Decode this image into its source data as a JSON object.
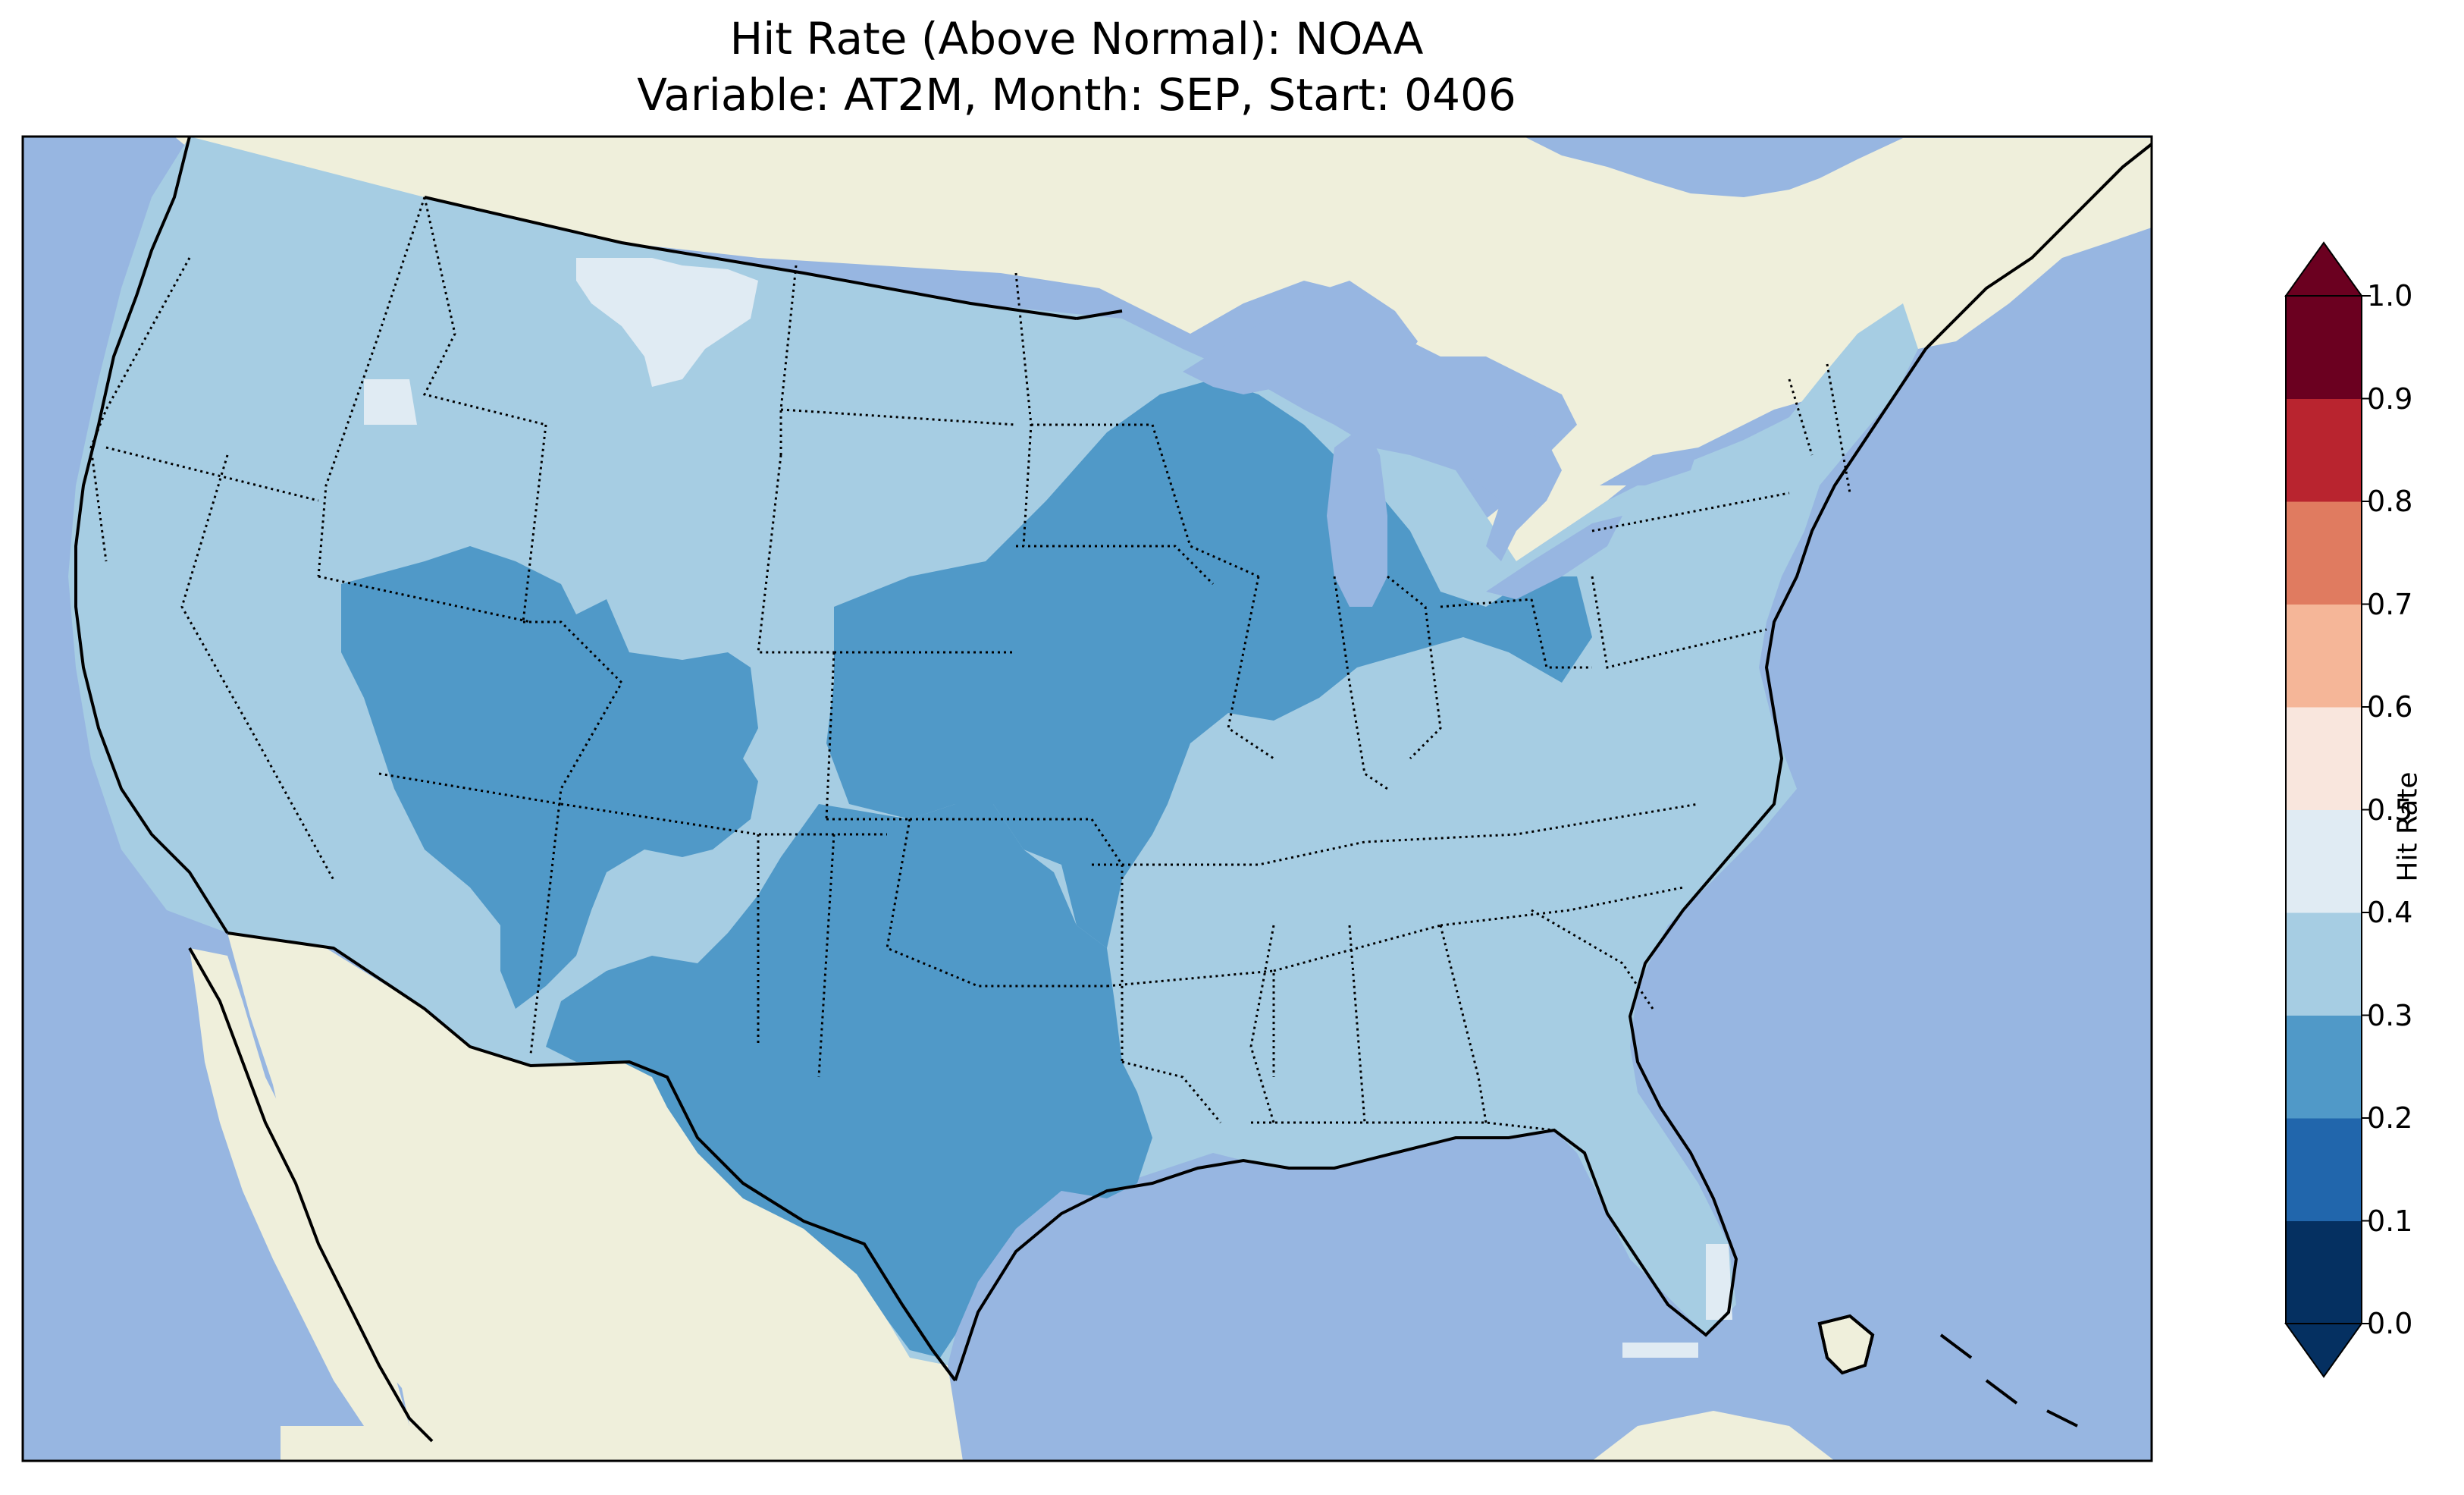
{
  "title": {
    "line1": "Hit Rate (Above Normal): NOAA",
    "line2": "Variable: AT2M, Month: SEP, Start: 0406"
  },
  "map": {
    "region": "Contiguous United States",
    "projection": "PlateCarree",
    "ocean_color": "#97b6e1",
    "land_color": "#efefdb",
    "coastline_color": "#000000",
    "state_borders": "dotted",
    "regions": [
      {
        "name": "West and Northeast/Southeast",
        "hit_rate_bin": "0.3–0.4"
      },
      {
        "name": "Rockies / Colorado Plateau",
        "hit_rate_bin": "0.2–0.3"
      },
      {
        "name": "Central Plains and Midwest",
        "hit_rate_bin": "0.2–0.3"
      },
      {
        "name": "Southern Plains / Texas",
        "hit_rate_bin": "0.2–0.3"
      },
      {
        "name": "Northern Montana patch",
        "hit_rate_bin": "0.4–0.5"
      },
      {
        "name": "Southern Florida patch",
        "hit_rate_bin": "0.4–0.5"
      }
    ]
  },
  "colorbar": {
    "label": "Hit Rate",
    "ticks": [
      "0.0",
      "0.1",
      "0.2",
      "0.3",
      "0.4",
      "0.5",
      "0.6",
      "0.7",
      "0.8",
      "0.9",
      "1.0"
    ],
    "colors": [
      "#053061",
      "#2166ac",
      "#4393c3",
      "#92c5de",
      "#d1e5f0",
      "#f7f7f7",
      "#fddbc7",
      "#f4a582",
      "#d6604d",
      "#b2182b",
      "#67001f"
    ],
    "bins": [
      "#053061",
      "#2166ac",
      "#5099c8",
      "#a6cde3",
      "#e0ebf3",
      "#f9e6dd",
      "#f5b698",
      "#e07b60",
      "#b9242f",
      "#6b0020"
    ],
    "extend": "both"
  }
}
